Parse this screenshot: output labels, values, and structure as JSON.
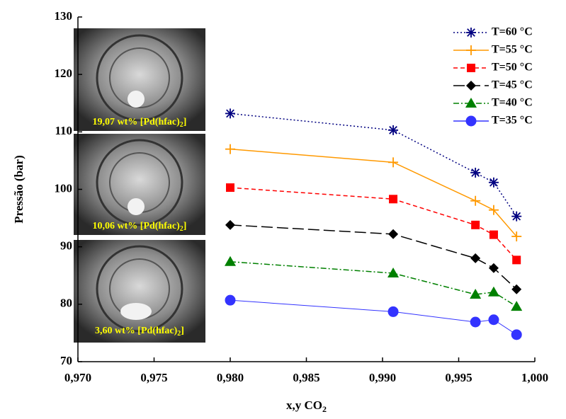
{
  "chart_data": {
    "type": "line",
    "x_label": {
      "text": "x,y CO",
      "sub": "2"
    },
    "y_label": "Pressão (bar)",
    "x": [
      0.98,
      0.9907,
      0.9961,
      0.9973,
      0.9988
    ],
    "xlim": [
      0.97,
      1.0
    ],
    "xticks": [
      {
        "value": 0.97,
        "label": "0,970"
      },
      {
        "value": 0.975,
        "label": "0,975"
      },
      {
        "value": 0.98,
        "label": "0,980"
      },
      {
        "value": 0.985,
        "label": "0,985"
      },
      {
        "value": 0.99,
        "label": "0,990"
      },
      {
        "value": 0.995,
        "label": "0,995"
      },
      {
        "value": 1.0,
        "label": "1,000"
      }
    ],
    "ylim": [
      70,
      130
    ],
    "yticks": [
      70,
      80,
      90,
      100,
      110,
      120,
      130
    ],
    "legend": "top-right",
    "series": [
      {
        "name": "T=60 °C",
        "color": "#000080",
        "marker": "star",
        "dash": "2,3",
        "values": [
          113.2,
          110.3,
          102.9,
          101.2,
          95.3
        ]
      },
      {
        "name": "T=55 °C",
        "color": "#ff9900",
        "marker": "plus",
        "dash": "none",
        "values": [
          107.0,
          104.7,
          98.0,
          96.4,
          91.8
        ]
      },
      {
        "name": "T=50 °C",
        "color": "#ff0000",
        "marker": "square",
        "dash": "6,4",
        "values": [
          100.3,
          98.3,
          93.8,
          92.1,
          87.7
        ]
      },
      {
        "name": "T=45 °C",
        "color": "#000000",
        "marker": "diamond",
        "dash": "16,6",
        "values": [
          93.8,
          92.2,
          88.0,
          86.3,
          82.6
        ]
      },
      {
        "name": "T=40 °C",
        "color": "#008000",
        "marker": "triangle",
        "dash": "8,3,2,3",
        "values": [
          87.4,
          85.4,
          81.7,
          82.1,
          79.6
        ]
      },
      {
        "name": "T=35 °C",
        "color": "#3333ff",
        "marker": "circle",
        "dash": "none",
        "values": [
          80.7,
          78.7,
          76.9,
          77.3,
          74.7
        ]
      }
    ],
    "annotations": [
      {
        "text": "19,07  wt% [Pd(hfac)",
        "sub": "2",
        "suffix": "]"
      },
      {
        "text": "10,06  wt% [Pd(hfac)",
        "sub": "2",
        "suffix": "]"
      },
      {
        "text": "3,60  wt% [Pd(hfac)",
        "sub": "2",
        "suffix": "]"
      }
    ]
  }
}
